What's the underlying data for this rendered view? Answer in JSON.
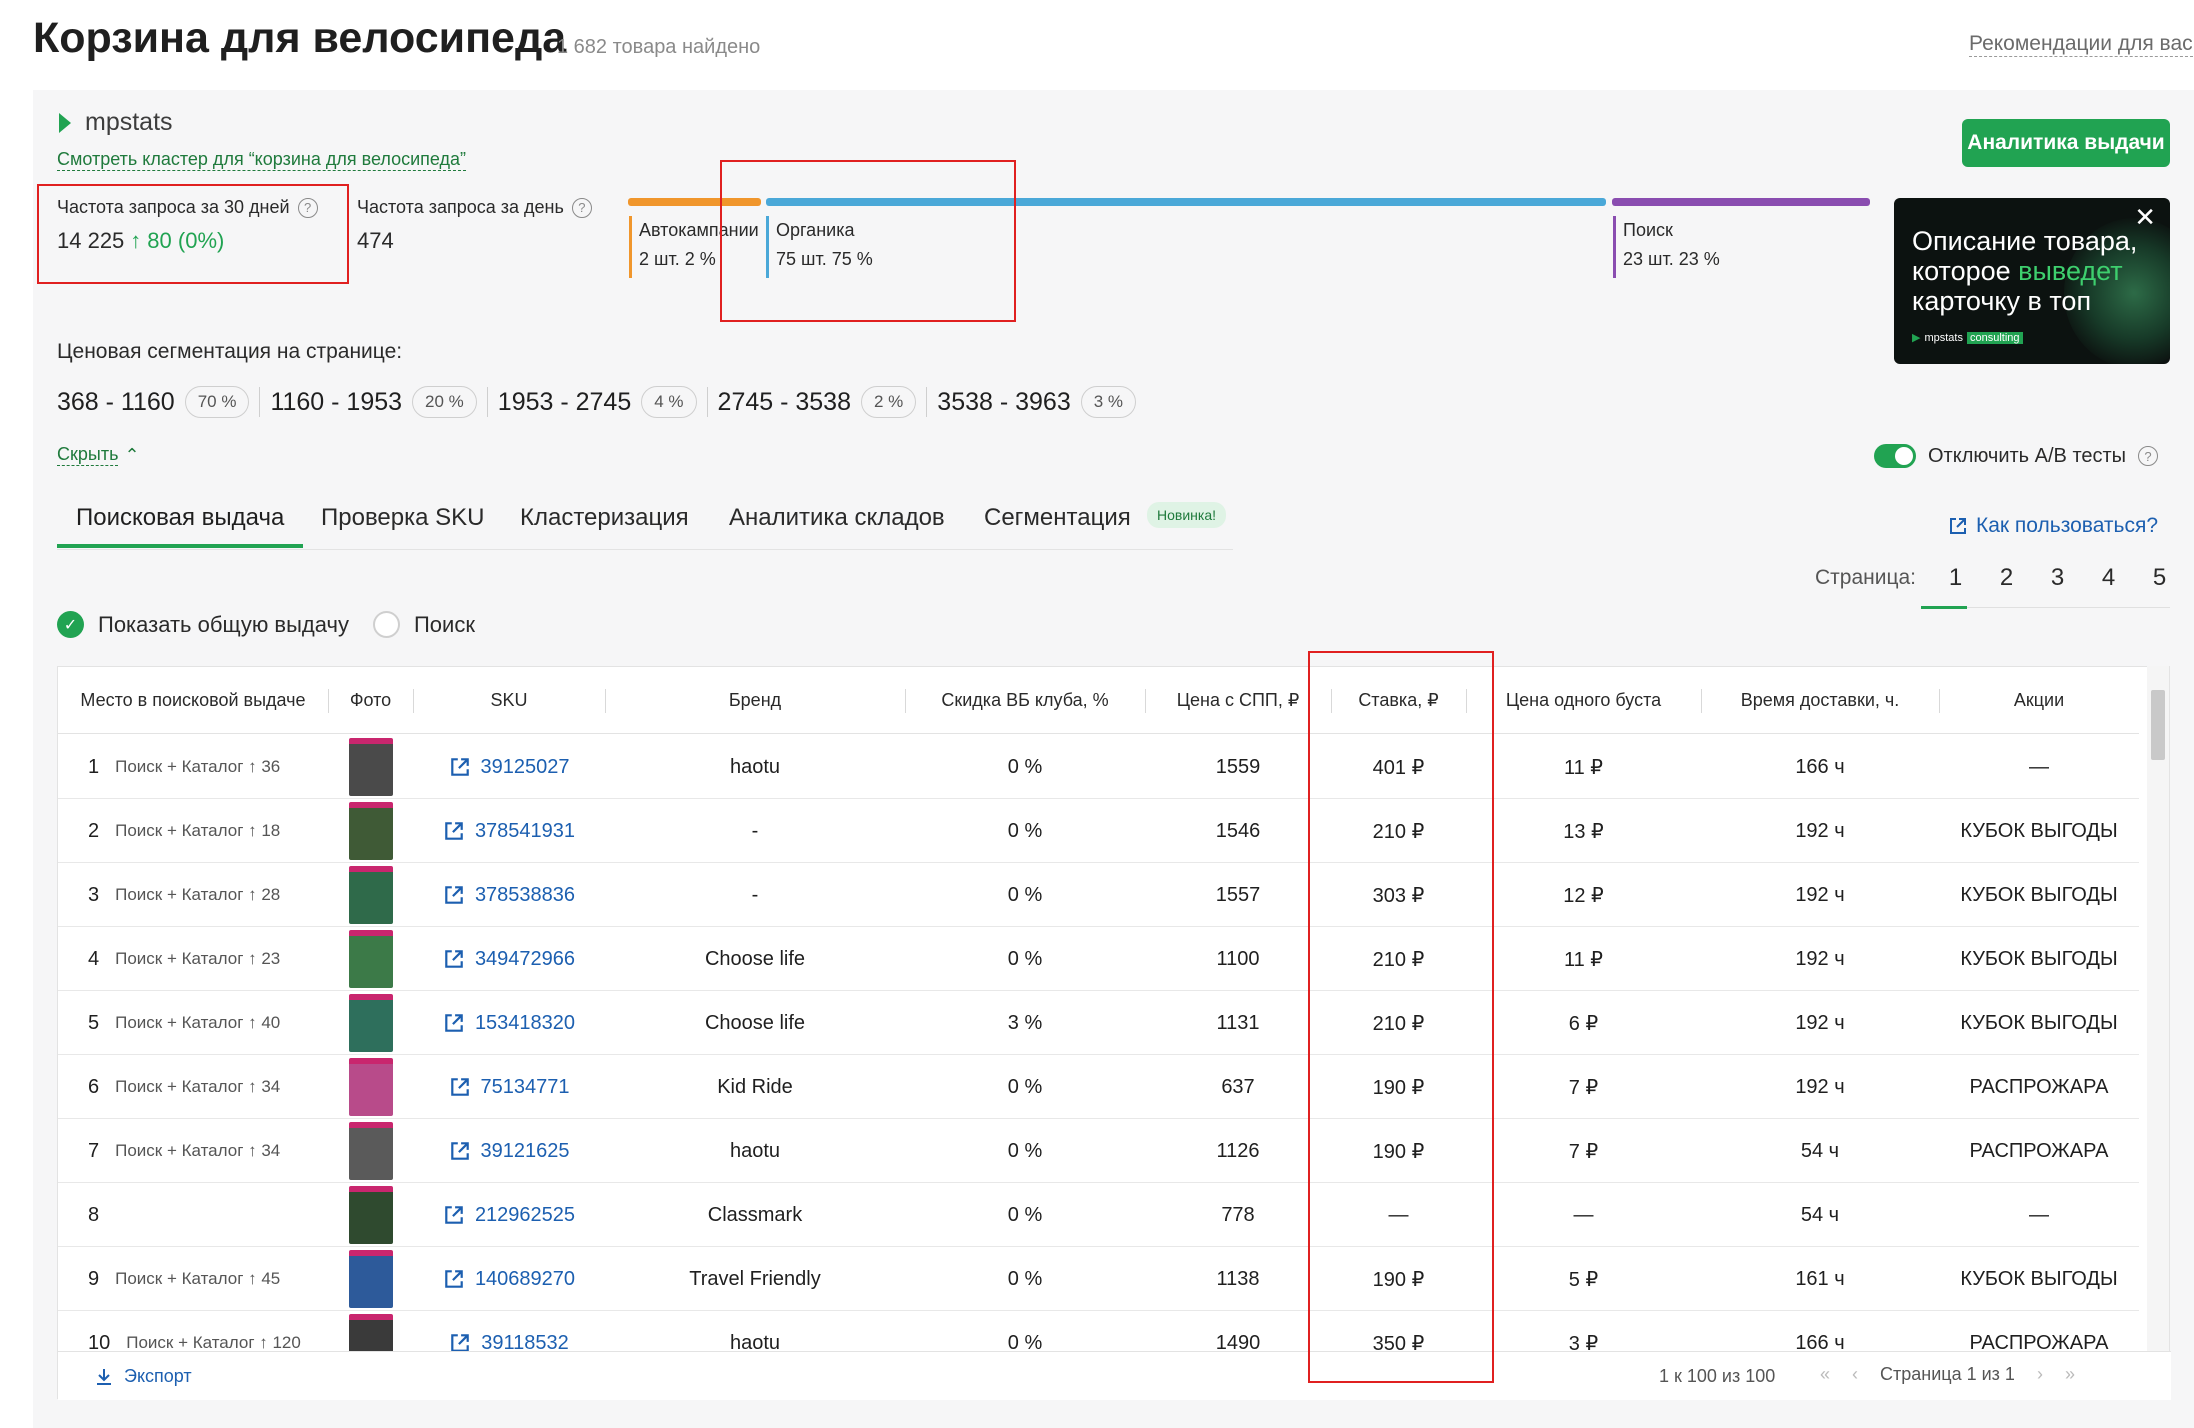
{
  "header": {
    "title": "Корзина для велосипеда",
    "found": "1 682 товара найдено",
    "recommend": "Рекомендации для вас"
  },
  "plugin": {
    "logo_text": "mpstats",
    "cluster_link": "Смотреть кластер для “корзина для велосипеда”",
    "analytics_button": "Аналитика выдачи",
    "freq30_label": "Частота запроса за 30 дней",
    "freq30_value": "14 225",
    "freq30_delta": "80 (0%)",
    "freqday_label": "Частота запроса за день",
    "freqday_value": "474",
    "segments": [
      {
        "name": "Автокампании",
        "count": "2 шт. 2 %",
        "color": "#f0962c",
        "share": 0.02
      },
      {
        "name": "Органика",
        "count": "75 шт. 75 %",
        "color": "#4aa8d8",
        "share": 0.75
      },
      {
        "name": "Поиск",
        "count": "23 шт. 23 %",
        "color": "#8a4db0",
        "share": 0.23
      }
    ],
    "ad": {
      "line1": "Описание товара,",
      "line2a": "которое ",
      "line2b": "выведет",
      "line3": "карточку в топ",
      "brand": "mpstats",
      "brand_tag": "consulting"
    },
    "price_label": "Ценовая сегментация на странице:",
    "prices": [
      {
        "range": "368 - 1160",
        "pct": "70 %"
      },
      {
        "range": "1160 - 1953",
        "pct": "20 %"
      },
      {
        "range": "1953 - 2745",
        "pct": "4 %"
      },
      {
        "range": "2745 - 3538",
        "pct": "2 %"
      },
      {
        "range": "3538 - 3963",
        "pct": "3 %"
      }
    ],
    "hide_link": "Скрыть",
    "ab_toggle": "Отключить А/В тесты",
    "tabs": [
      "Поисковая выдача",
      "Проверка SKU",
      "Кластеризация",
      "Аналитика складов",
      "Сегментация"
    ],
    "new_badge": "Новинка!",
    "howto": "Как пользоваться?",
    "page_label": "Страница:",
    "pages": [
      "1",
      "2",
      "3",
      "4",
      "5"
    ],
    "radio_all": "Показать общую выдачу",
    "radio_search": "Поиск"
  },
  "table": {
    "columns": [
      "Место в поисковой выдаче",
      "Фото",
      "SKU",
      "Бренд",
      "Скидка ВБ клуба, %",
      "Цена с СПП, ₽",
      "Ставка, ₽",
      "Цена одного буста",
      "Время доставки, ч.",
      "Акции"
    ],
    "rows": [
      {
        "pos": "1",
        "src": "Поиск + Каталог ↑ 36",
        "sku": "39125027",
        "brand": "haotu",
        "disc": "0 %",
        "price": "1559",
        "bid": "401 ₽",
        "boost": "11 ₽",
        "delivery": "166 ч",
        "promo": "—",
        "thumb": "#4a4a4a"
      },
      {
        "pos": "2",
        "src": "Поиск + Каталог ↑ 18",
        "sku": "378541931",
        "brand": "-",
        "disc": "0 %",
        "price": "1546",
        "bid": "210 ₽",
        "boost": "13 ₽",
        "delivery": "192 ч",
        "promo": "КУБОК ВЫГОДЫ",
        "thumb": "#3f5a36"
      },
      {
        "pos": "3",
        "src": "Поиск + Каталог ↑ 28",
        "sku": "378538836",
        "brand": "-",
        "disc": "0 %",
        "price": "1557",
        "bid": "303 ₽",
        "boost": "12 ₽",
        "delivery": "192 ч",
        "promo": "КУБОК ВЫГОДЫ",
        "thumb": "#2f6a4a"
      },
      {
        "pos": "4",
        "src": "Поиск + Каталог ↑ 23",
        "sku": "349472966",
        "brand": "Choose life",
        "disc": "0 %",
        "price": "1100",
        "bid": "210 ₽",
        "boost": "11 ₽",
        "delivery": "192 ч",
        "promo": "КУБОК ВЫГОДЫ",
        "thumb": "#3c7a48"
      },
      {
        "pos": "5",
        "src": "Поиск + Каталог ↑ 40",
        "sku": "153418320",
        "brand": "Choose life",
        "disc": "3 %",
        "price": "1131",
        "bid": "210 ₽",
        "boost": "6 ₽",
        "delivery": "192 ч",
        "promo": "КУБОК ВЫГОДЫ",
        "thumb": "#2e6f5c"
      },
      {
        "pos": "6",
        "src": "Поиск + Каталог ↑ 34",
        "sku": "75134771",
        "brand": "Kid Ride",
        "disc": "0 %",
        "price": "637",
        "bid": "190 ₽",
        "boost": "7 ₽",
        "delivery": "192 ч",
        "promo": "РАСПРОЖАРА",
        "thumb": "#b84b8a"
      },
      {
        "pos": "7",
        "src": "Поиск + Каталог ↑ 34",
        "sku": "39121625",
        "brand": "haotu",
        "disc": "0 %",
        "price": "1126",
        "bid": "190 ₽",
        "boost": "7 ₽",
        "delivery": "54 ч",
        "promo": "РАСПРОЖАРА",
        "thumb": "#5a5a5a"
      },
      {
        "pos": "8",
        "src": "",
        "sku": "212962525",
        "brand": "Classmark",
        "disc": "0 %",
        "price": "778",
        "bid": "—",
        "boost": "—",
        "delivery": "54 ч",
        "promo": "—",
        "thumb": "#2f4a2f"
      },
      {
        "pos": "9",
        "src": "Поиск + Каталог ↑ 45",
        "sku": "140689270",
        "brand": "Travel Friendly",
        "disc": "0 %",
        "price": "1138",
        "bid": "190 ₽",
        "boost": "5 ₽",
        "delivery": "161 ч",
        "promo": "КУБОК ВЫГОДЫ",
        "thumb": "#2d5a9a"
      },
      {
        "pos": "10",
        "src": "Поиск + Каталог ↑ 120",
        "sku": "39118532",
        "brand": "haotu",
        "disc": "0 %",
        "price": "1490",
        "bid": "350 ₽",
        "boost": "3 ₽",
        "delivery": "166 ч",
        "promo": "РАСПРОЖАРА",
        "thumb": "#3a3a3a"
      }
    ],
    "export": "Экспорт",
    "count": "1 к 100 из 100",
    "page_text": "Страница 1 из 1"
  }
}
